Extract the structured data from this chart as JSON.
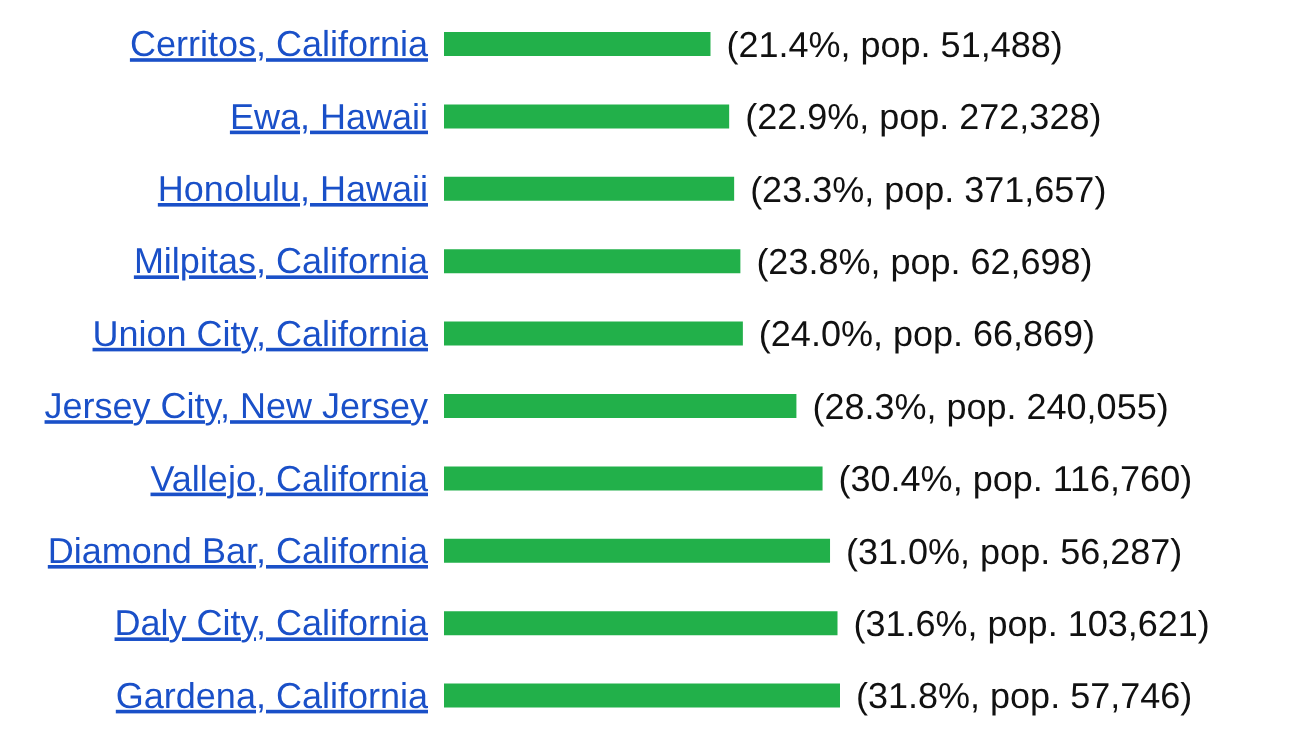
{
  "chart_data": {
    "type": "bar",
    "orientation": "horizontal",
    "categories": [
      "Cerritos, California",
      "Ewa, Hawaii",
      "Honolulu, Hawaii",
      "Milpitas, California",
      "Union City, California",
      "Jersey City, New Jersey",
      "Vallejo, California",
      "Diamond Bar, California",
      "Daly City, California",
      "Gardena, California"
    ],
    "values": [
      21.4,
      22.9,
      23.3,
      23.8,
      24.0,
      28.3,
      30.4,
      31.0,
      31.6,
      31.8
    ],
    "value_labels": [
      "(21.4%, pop. 51,488)",
      "(22.9%, pop. 272,328)",
      "(23.3%, pop. 371,657)",
      "(23.8%, pop. 62,698)",
      "(24.0%, pop. 66,869)",
      "(28.3%, pop. 240,055)",
      "(30.4%, pop. 116,760)",
      "(31.0%, pop. 56,287)",
      "(31.6%, pop. 103,621)",
      "(31.8%, pop. 57,746)"
    ],
    "color": "#22b04a"
  }
}
